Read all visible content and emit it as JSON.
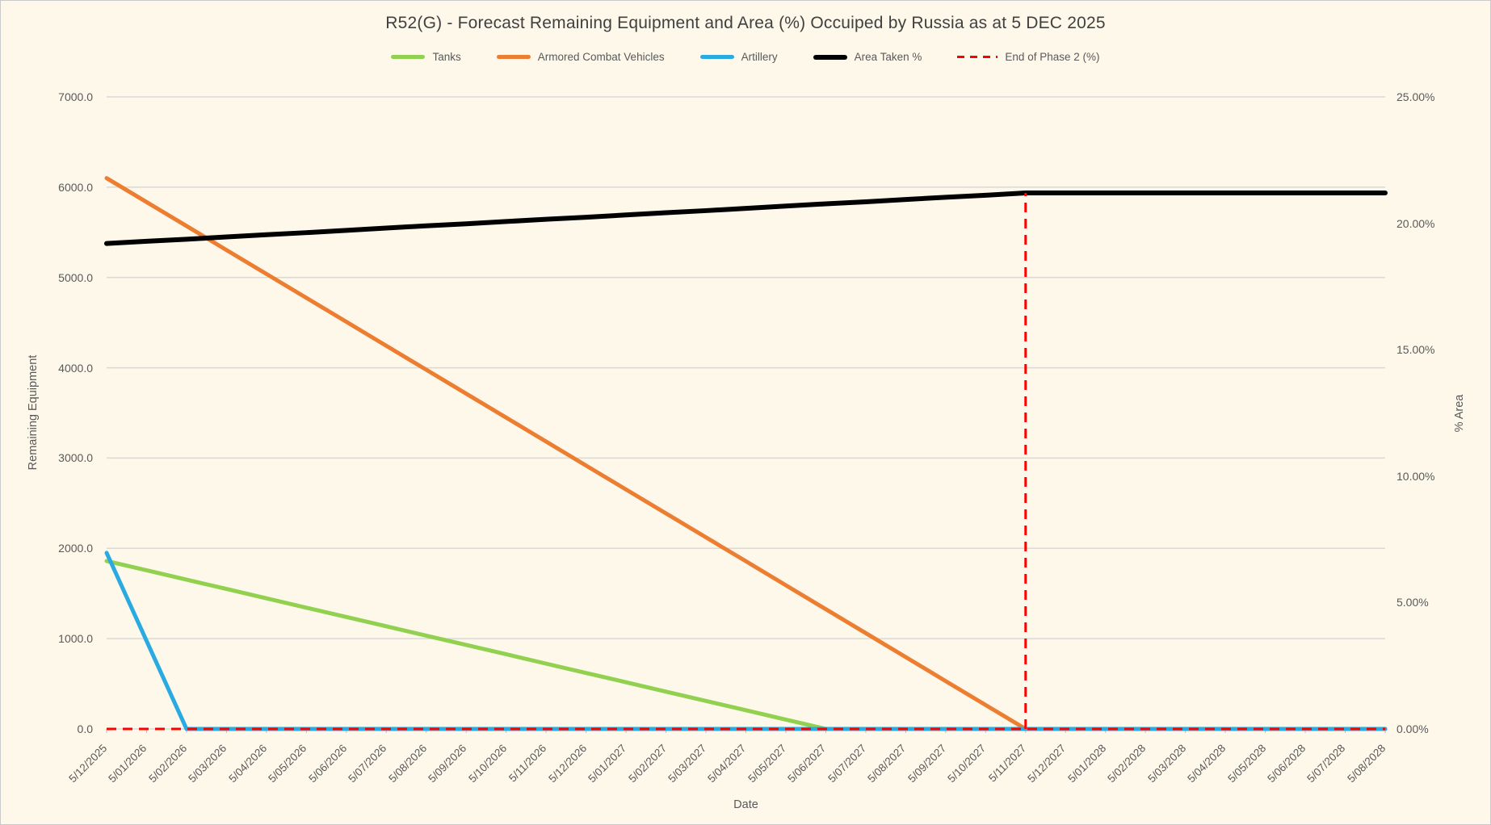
{
  "chart_data": {
    "type": "line",
    "title": "R52(G) - Forecast Remaining Equipment and Area (%) Occuiped by Russia as at 5 DEC 2025",
    "x_axis_label": "Date",
    "grid": true,
    "legend_position": "top",
    "y_left": {
      "label": "Remaining Equipment",
      "min": 0,
      "max": 7000,
      "tick_step": 1000,
      "tick_labels": [
        "0.0",
        "1000.0",
        "2000.0",
        "3000.0",
        "4000.0",
        "5000.0",
        "6000.0",
        "7000.0"
      ]
    },
    "y_right": {
      "label": "% Area",
      "min": 0,
      "max": 25,
      "tick_step": 5,
      "tick_labels": [
        "0.00%",
        "5.00%",
        "10.00%",
        "15.00%",
        "20.00%",
        "25.00%"
      ]
    },
    "categories": [
      "5/12/2025",
      "5/01/2026",
      "5/02/2026",
      "5/03/2026",
      "5/04/2026",
      "5/05/2026",
      "5/06/2026",
      "5/07/2026",
      "5/08/2026",
      "5/09/2026",
      "5/10/2026",
      "5/11/2026",
      "5/12/2026",
      "5/01/2027",
      "5/02/2027",
      "5/03/2027",
      "5/04/2027",
      "5/05/2027",
      "5/06/2027",
      "5/07/2027",
      "5/08/2027",
      "5/09/2027",
      "5/10/2027",
      "5/11/2027",
      "5/12/2027",
      "5/01/2028",
      "5/02/2028",
      "5/03/2028",
      "5/04/2028",
      "5/05/2028",
      "5/06/2028",
      "5/07/2028",
      "5/08/2028"
    ],
    "series": [
      {
        "name": "Tanks",
        "axis": "left",
        "color": "#92D050",
        "style": "solid",
        "width": 5,
        "values": [
          1860,
          1757,
          1653,
          1550,
          1447,
          1343,
          1240,
          1137,
          1033,
          930,
          827,
          723,
          620,
          517,
          413,
          310,
          207,
          103,
          0,
          0,
          0,
          0,
          0,
          0,
          0,
          0,
          0,
          0,
          0,
          0,
          0,
          0,
          0
        ]
      },
      {
        "name": "Armored Combat Vehicles",
        "axis": "left",
        "color": "#ED7D31",
        "style": "solid",
        "width": 5,
        "values": [
          6100,
          5835,
          5570,
          5304,
          5039,
          4774,
          4509,
          4243,
          3978,
          3713,
          3448,
          3183,
          2917,
          2652,
          2387,
          2122,
          1857,
          1591,
          1326,
          1061,
          796,
          530,
          265,
          0,
          0,
          0,
          0,
          0,
          0,
          0,
          0,
          0,
          0
        ]
      },
      {
        "name": "Artillery",
        "axis": "left",
        "color": "#29ABE2",
        "style": "solid",
        "width": 5,
        "values": [
          1950,
          975,
          0,
          0,
          0,
          0,
          0,
          0,
          0,
          0,
          0,
          0,
          0,
          0,
          0,
          0,
          0,
          0,
          0,
          0,
          0,
          0,
          0,
          0,
          0,
          0,
          0,
          0,
          0,
          0,
          0,
          0,
          0
        ]
      },
      {
        "name": "Area Taken %",
        "axis": "right",
        "color": "#000000",
        "style": "solid",
        "width": 6,
        "values": [
          19.2,
          19.29,
          19.37,
          19.46,
          19.55,
          19.63,
          19.72,
          19.81,
          19.9,
          19.98,
          20.07,
          20.16,
          20.24,
          20.33,
          20.42,
          20.5,
          20.59,
          20.68,
          20.77,
          20.85,
          20.94,
          21.03,
          21.11,
          21.2,
          21.2,
          21.2,
          21.2,
          21.2,
          21.2,
          21.2,
          21.2,
          21.2,
          21.2
        ]
      },
      {
        "name": "End of Phase 2 (%)",
        "axis": "right",
        "color": "#FF0000",
        "style": "dashed",
        "width": 3,
        "baseline_value": 0,
        "marker_category": "5/11/2027",
        "marker_value": 21.2
      }
    ],
    "style": {
      "background": "#FDF8EA",
      "gridline_color": "#D9D9D9",
      "tick_color": "#BFBFBF",
      "axis_text_color": "#595959",
      "title_color": "#404040"
    }
  }
}
